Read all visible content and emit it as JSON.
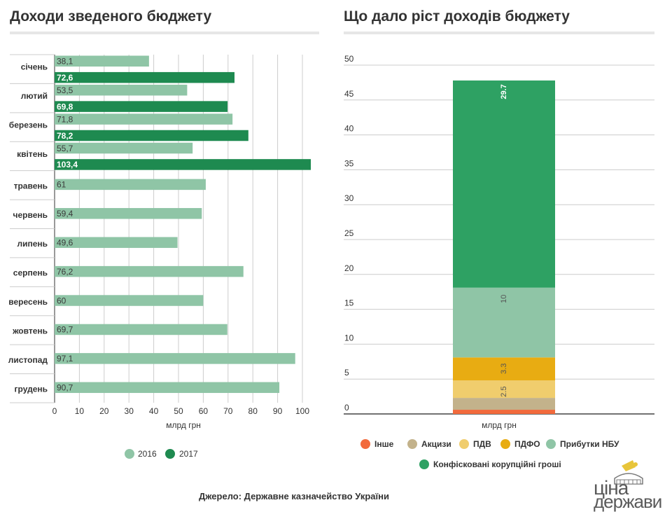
{
  "titles": {
    "left": "Доходи зведеного бюджету",
    "right": "Що дало ріст доходів бюджету"
  },
  "source": "Джерело: Державне казначейство України",
  "logo": {
    "line1": "ціна",
    "line2": "держави"
  },
  "colors": {
    "c2016": "#8fc5a6",
    "c2017": "#1e8a50",
    "other": "#f26a3c",
    "excise": "#c3b28b",
    "vat": "#f0cd6d",
    "pit": "#e8ac12",
    "nbu": "#8fc5a6",
    "confiscated": "#2ea163",
    "grid": "#cccccc",
    "axis": "#555555"
  },
  "chart_data": [
    {
      "type": "bar",
      "orientation": "horizontal",
      "title": "Доходи зведеного бюджету",
      "categories": [
        "січень",
        "лютий",
        "березень",
        "квітень",
        "травень",
        "червень",
        "липень",
        "серпень",
        "вересень",
        "жовтень",
        "листопад",
        "грудень"
      ],
      "series": [
        {
          "name": "2016",
          "values": [
            38.1,
            53.5,
            71.8,
            55.7,
            61,
            59.4,
            49.6,
            76.2,
            60,
            69.7,
            97.1,
            90.7
          ],
          "labels": [
            "38,1",
            "53,5",
            "71,8",
            "55,7",
            "61",
            "59,4",
            "49,6",
            "76,2",
            "60",
            "69,7",
            "97,1",
            "90,7"
          ]
        },
        {
          "name": "2017",
          "values": [
            72.6,
            69.8,
            78.2,
            103.4,
            null,
            null,
            null,
            null,
            null,
            null,
            null,
            null
          ],
          "labels": [
            "72,6",
            "69,8",
            "78,2",
            "103,4",
            "",
            "",
            "",
            "",
            "",
            "",
            "",
            ""
          ]
        }
      ],
      "xlabel": "млрд грн",
      "xlim": [
        0,
        110
      ],
      "xticks": [
        0,
        10,
        20,
        30,
        40,
        50,
        60,
        70,
        80,
        90,
        100
      ],
      "legend": "bottom"
    },
    {
      "type": "bar",
      "stacked": true,
      "title": "Що дало ріст доходів бюджету",
      "ylabel": "млрд грн",
      "ylim": [
        0,
        50
      ],
      "yticks": [
        0,
        5,
        10,
        15,
        20,
        25,
        30,
        35,
        40,
        45,
        50
      ],
      "series": [
        {
          "name": "Інше",
          "value": 0.6,
          "label": ""
        },
        {
          "name": "Акцизи",
          "value": 1.7,
          "label": ""
        },
        {
          "name": "ПДВ",
          "value": 2.5,
          "label": "2.5"
        },
        {
          "name": "ПДФО",
          "value": 3.3,
          "label": "3.3"
        },
        {
          "name": "Прибутки НБУ",
          "value": 10,
          "label": "10"
        },
        {
          "name": "Конфісковані корупційні гроші",
          "value": 29.7,
          "label": "29.7"
        }
      ],
      "legend": "bottom"
    }
  ]
}
